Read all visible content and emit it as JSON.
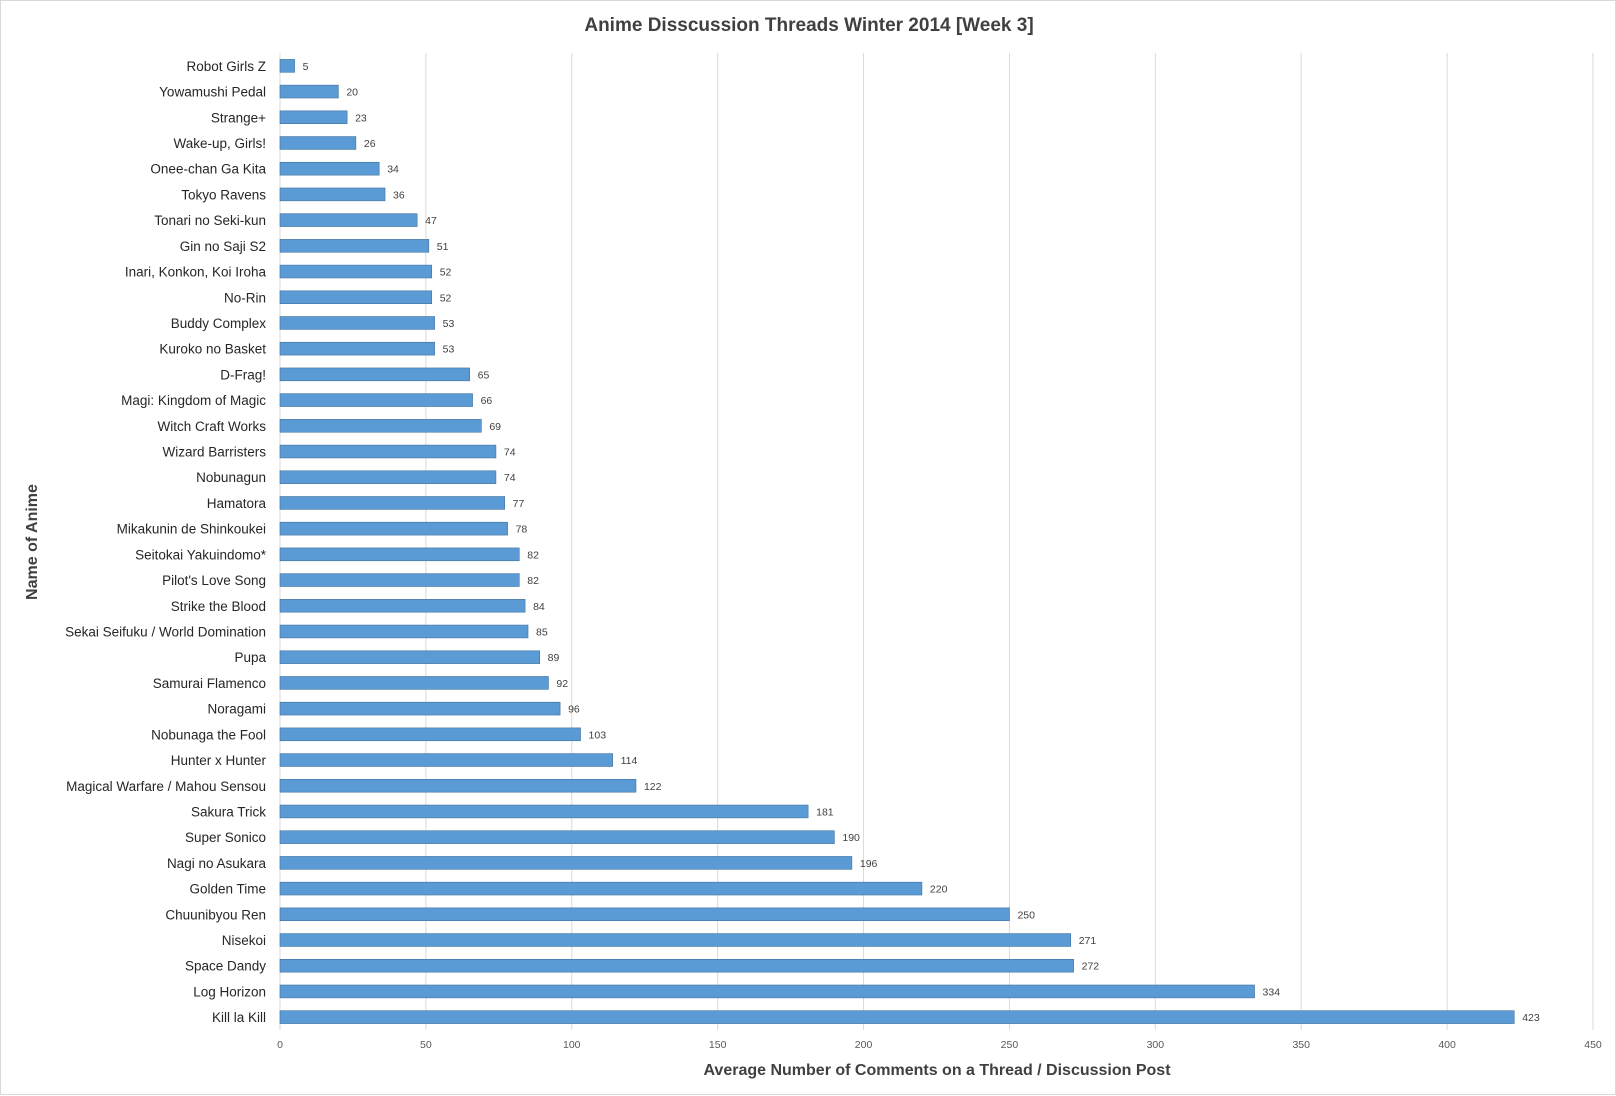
{
  "chart_data": {
    "type": "bar",
    "orientation": "horizontal",
    "title": "Anime Disscussion  Threads Winter 2014 [Week 3]",
    "xlabel": "Average Number of Comments on a Thread / Discussion Post",
    "ylabel": "Name of Anime",
    "xlim": [
      0,
      450
    ],
    "xticks": [
      0,
      50,
      100,
      150,
      200,
      250,
      300,
      350,
      400,
      450
    ],
    "grid": true,
    "legend": "none",
    "bar_color": "#5b9bd5",
    "categories": [
      "Robot Girls Z",
      "Yowamushi Pedal",
      "Strange+",
      "Wake-up, Girls!",
      "Onee-chan Ga Kita",
      "Tokyo Ravens",
      "Tonari no Seki-kun",
      "Gin no Saji S2",
      "Inari, Konkon, Koi Iroha",
      "No-Rin",
      "Buddy Complex",
      "Kuroko no Basket",
      "D-Frag!",
      "Magi: Kingdom of Magic",
      "Witch Craft Works",
      "Wizard Barristers",
      "Nobunagun",
      "Hamatora",
      "Mikakunin de Shinkoukei",
      "Seitokai Yakuindomo*",
      "Pilot's Love Song",
      "Strike the Blood",
      "Sekai Seifuku / World Domination",
      "Pupa",
      "Samurai Flamenco",
      "Noragami",
      "Nobunaga the Fool",
      "Hunter x Hunter",
      "Magical Warfare / Mahou Sensou",
      "Sakura Trick",
      "Super Sonico",
      "Nagi no Asukara",
      "Golden Time",
      "Chuunibyou Ren",
      "Nisekoi",
      "Space Dandy",
      "Log Horizon",
      "Kill la Kill"
    ],
    "values": [
      5,
      20,
      23,
      26,
      34,
      36,
      47,
      51,
      52,
      52,
      53,
      53,
      65,
      66,
      69,
      74,
      74,
      77,
      78,
      82,
      82,
      84,
      85,
      89,
      92,
      96,
      103,
      114,
      122,
      181,
      190,
      196,
      220,
      250,
      271,
      272,
      334,
      423
    ]
  }
}
